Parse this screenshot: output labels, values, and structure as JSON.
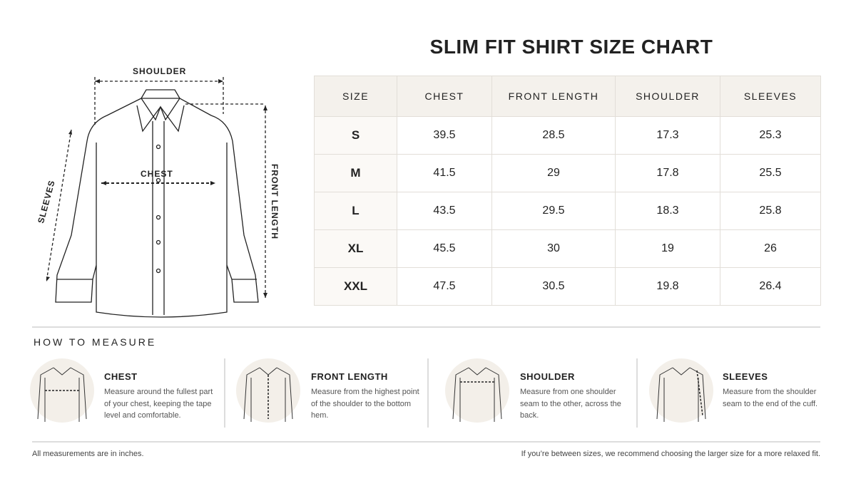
{
  "title": "SLIM FIT SHIRT SIZE CHART",
  "diagram": {
    "shoulder": "SHOULDER",
    "chest": "CHEST",
    "sleeves": "SLEEVES",
    "front_length": "FRONT LENGTH"
  },
  "table": {
    "headers": [
      "SIZE",
      "CHEST",
      "FRONT LENGTH",
      "SHOULDER",
      "SLEEVES"
    ],
    "rows": [
      [
        "S",
        39.5,
        28.5,
        17.3,
        25.3
      ],
      [
        "M",
        41.5,
        29,
        17.8,
        25.5
      ],
      [
        "L",
        43.5,
        29.5,
        18.3,
        25.8
      ],
      [
        "XL",
        45.5,
        30,
        19,
        26
      ],
      [
        "XXL",
        47.5,
        30.5,
        19.8,
        26.4
      ]
    ]
  },
  "how_to_measure": {
    "title": "HOW TO MEASURE",
    "items": [
      {
        "title": "CHEST",
        "text": "Measure around the fullest part of your chest, keeping the tape level and comfortable."
      },
      {
        "title": "FRONT LENGTH",
        "text": "Measure from the highest point of the shoulder to the bottom hem."
      },
      {
        "title": "SHOULDER",
        "text": "Measure from one shoulder seam to the other, across the back."
      },
      {
        "title": "SLEEVES",
        "text": "Measure from the shoulder seam to the end of the cuff."
      }
    ]
  },
  "footer": {
    "left": "All measurements are in inches.",
    "right": "If you’re between sizes, we recommend choosing the larger size for a more relaxed fit."
  }
}
